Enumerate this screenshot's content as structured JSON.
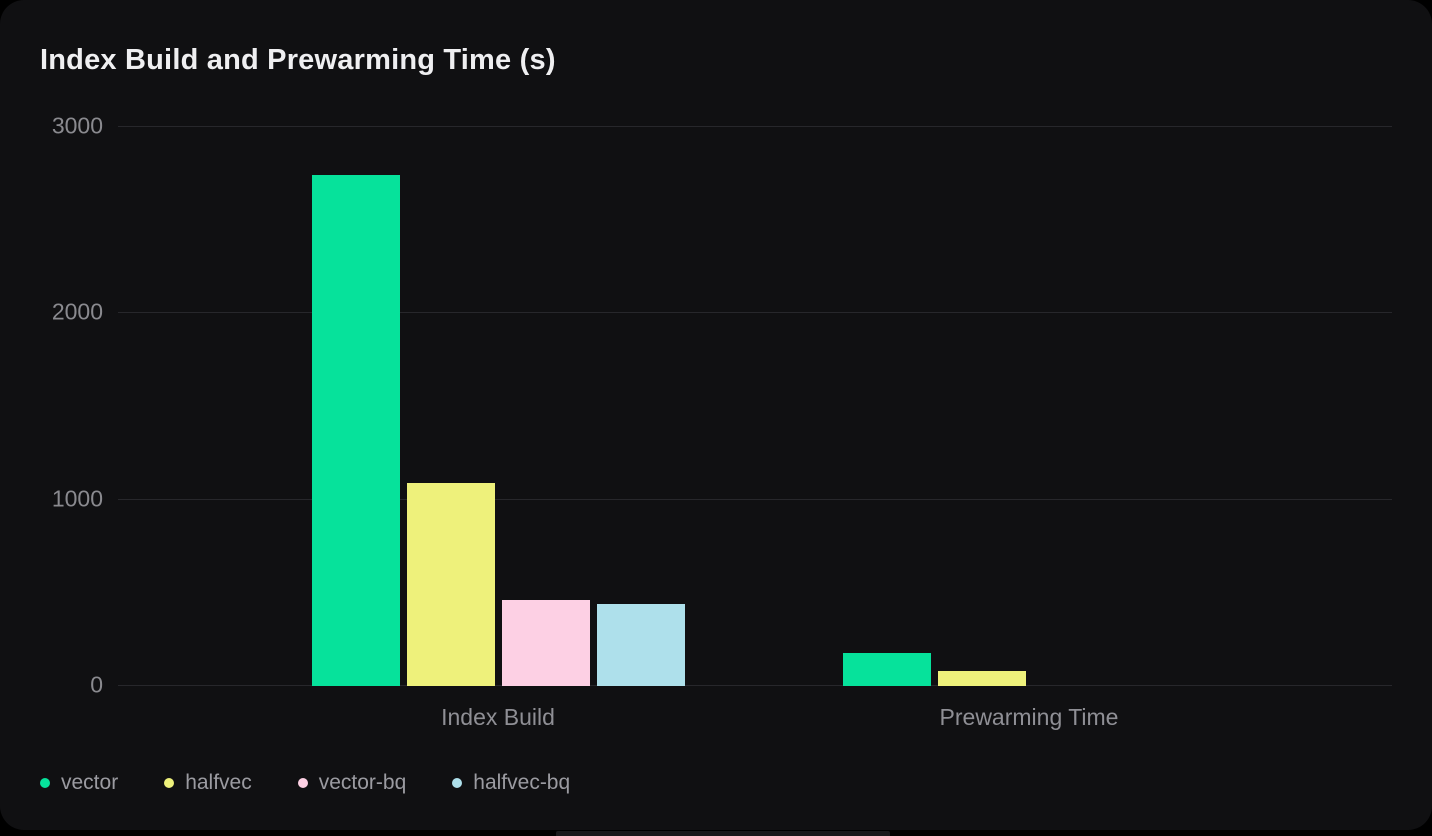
{
  "card": {
    "title": "Index Build and Prewarming Time (s)"
  },
  "chart_data": {
    "type": "bar",
    "title": "Index Build and Prewarming Time (s)",
    "categories": [
      "Index Build",
      "Prewarming Time"
    ],
    "series": [
      {
        "name": "vector",
        "color": "#06e29b",
        "values": [
          2735,
          172
        ]
      },
      {
        "name": "halfvec",
        "color": "#eef17b",
        "values": [
          1082,
          75
        ]
      },
      {
        "name": "vector-bq",
        "color": "#fdd0e4",
        "values": [
          455,
          0
        ]
      },
      {
        "name": "halfvec-bq",
        "color": "#aee0eb",
        "values": [
          435,
          0
        ]
      }
    ],
    "ylim": [
      0,
      3000
    ],
    "y_ticks": [
      0,
      1000,
      2000,
      3000
    ],
    "xlabel": "",
    "ylabel": "",
    "grid": "horizontal",
    "legend_position": "bottom-left",
    "background_color": "#101012",
    "gridline_color": "#27272b",
    "tick_label_color": "#8a8a8f",
    "title_color": "#efeff1"
  }
}
